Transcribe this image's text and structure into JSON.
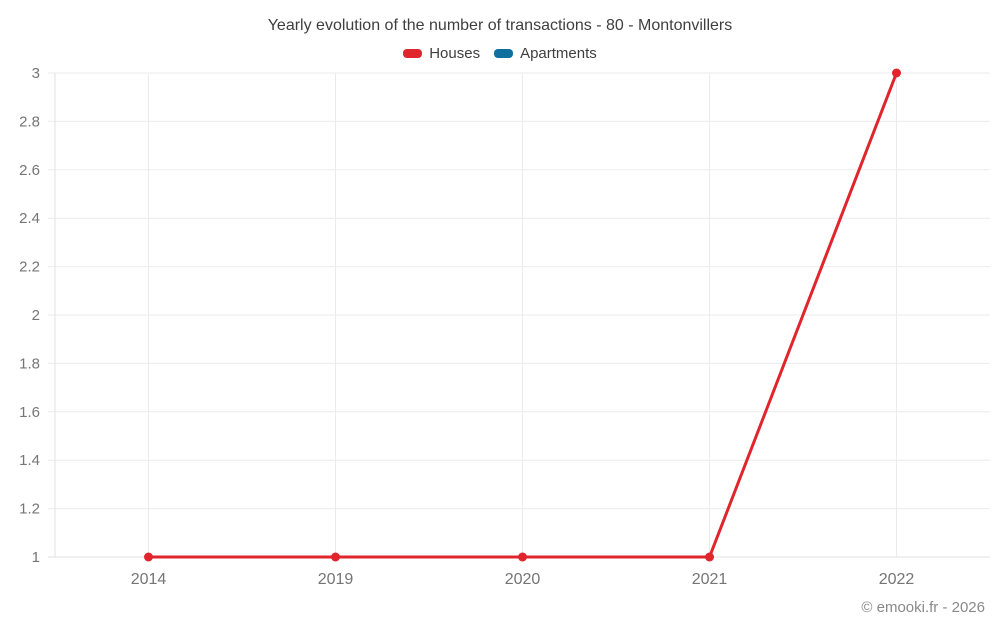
{
  "chart_data": {
    "type": "line",
    "title": "Yearly evolution of the number of transactions - 80 - Montonvillers",
    "xlabel": "",
    "ylabel": "",
    "categories": [
      "2014",
      "2019",
      "2020",
      "2021",
      "2022"
    ],
    "series": [
      {
        "name": "Houses",
        "color": "#e0252d",
        "values": [
          1,
          1,
          1,
          1,
          3
        ]
      },
      {
        "name": "Apartments",
        "color": "#0f6f9f",
        "values": []
      }
    ],
    "ylim": [
      1,
      3
    ],
    "y_ticks": [
      "1",
      "1.2",
      "1.4",
      "1.6",
      "1.8",
      "2",
      "2.2",
      "2.4",
      "2.6",
      "2.8",
      "3"
    ],
    "grid": true,
    "legend_position": "top",
    "colors": {
      "grid": "#ebebeb",
      "axis": "#e2e2e2",
      "tick_text": "#757575",
      "title_text": "#3f3f3f",
      "watermark_text": "#898989"
    }
  },
  "footer": {
    "credit": "© emooki.fr - 2026"
  }
}
